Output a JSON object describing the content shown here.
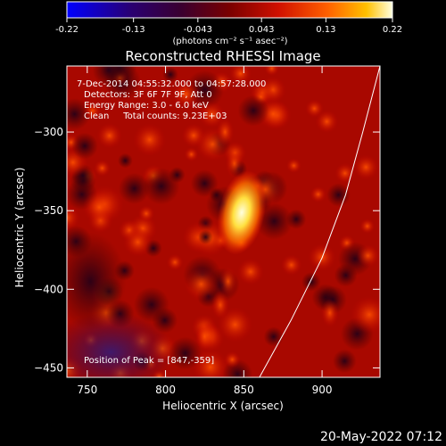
{
  "chart_data": {
    "type": "heatmap",
    "title": "Reconstructed RHESSI Image",
    "xlabel": "Heliocentric X (arcsec)",
    "ylabel": "Heliocentric Y (arcsec)",
    "xlim": [
      737,
      937
    ],
    "ylim": [
      -456,
      -258
    ],
    "x_ticks": [
      750,
      800,
      850,
      900
    ],
    "y_ticks": [
      -300,
      -350,
      -400,
      -450
    ],
    "colorbar": {
      "min": -0.22,
      "max": 0.22,
      "ticks": [
        -0.22,
        -0.13,
        -0.043,
        0.043,
        0.13,
        0.22
      ],
      "tick_labels": [
        "-0.22",
        "-0.13",
        "-0.043",
        "0.043",
        "0.13",
        "0.22"
      ],
      "label": "(photons cm⁻² s⁻¹ asec⁻²)"
    },
    "peak": {
      "x": 847,
      "y": -359
    },
    "annotations": [
      "7-Dec-2014 04:55:32.000 to 04:57:28.000",
      "Detectors: 3F 6F 7F 9F, Att 0",
      "Energy Range: 3.0 - 6.0 keV",
      "Clean     Total counts: 9.23E+03"
    ],
    "peak_label": "Position of Peak = [847,-359]",
    "limb_curve": [
      [
        860,
        -456
      ],
      [
        880,
        -420
      ],
      [
        900,
        -380
      ],
      [
        915,
        -340
      ],
      [
        926,
        -300
      ],
      [
        937,
        -258
      ]
    ],
    "timestamp": "20-May-2022 07:12"
  }
}
